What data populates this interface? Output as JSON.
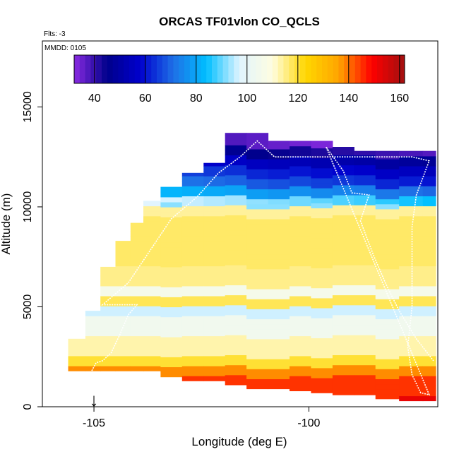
{
  "chart_data": {
    "type": "heatmap",
    "title": "ORCAS TF01vlon CO_QCLS",
    "flights_note": "Flts: -3",
    "date_note": "MMDD: 0105",
    "xlabel": "Longitude (deg E)",
    "ylabel": "Altitude (m)",
    "xlim": [
      -106.2,
      -97.0
    ],
    "ylim": [
      0,
      18300
    ],
    "x_ticks": [
      -105,
      -100
    ],
    "x_tick_labels": [
      "-105",
      "-100"
    ],
    "y_ticks": [
      0,
      5000,
      10000,
      15000
    ],
    "y_tick_labels": [
      "0",
      "5000",
      "10000",
      "15000"
    ],
    "colorbar": {
      "range": [
        32,
        162
      ],
      "ticks": [
        40,
        60,
        80,
        100,
        120,
        140,
        160
      ],
      "tick_labels": [
        "40",
        "60",
        "80",
        "100",
        "120",
        "140",
        "160"
      ],
      "colors": [
        "#8a2be2",
        "#00008b",
        "#0000cd",
        "#1e6fe6",
        "#00bfff",
        "#e0f4ff",
        "#fffde0",
        "#ffd700",
        "#ffa500",
        "#ff0000",
        "#a01010"
      ]
    },
    "marker": {
      "longitude": -105.0,
      "symbol": "↓"
    },
    "altitude_profile": [
      {
        "alt_min": 14000,
        "alt_max": 18300,
        "co": null
      },
      {
        "alt_min": 13000,
        "alt_max": 14000,
        "co": 36
      },
      {
        "alt_min": 12500,
        "alt_max": 13000,
        "co": 45
      },
      {
        "alt_min": 12000,
        "alt_max": 12500,
        "co": 55
      },
      {
        "alt_min": 11500,
        "alt_max": 12000,
        "co": 62
      },
      {
        "alt_min": 11000,
        "alt_max": 11500,
        "co": 68
      },
      {
        "alt_min": 10500,
        "alt_max": 11000,
        "co": 78
      },
      {
        "alt_min": 10000,
        "alt_max": 10500,
        "co": 92
      },
      {
        "alt_min": 9500,
        "alt_max": 10000,
        "co": 114
      },
      {
        "alt_min": 7000,
        "alt_max": 9500,
        "co": 117
      },
      {
        "alt_min": 6000,
        "alt_max": 7000,
        "co": 115
      },
      {
        "alt_min": 5500,
        "alt_max": 6000,
        "co": 106
      },
      {
        "alt_min": 5000,
        "alt_max": 5500,
        "co": 118
      },
      {
        "alt_min": 4500,
        "alt_max": 5000,
        "co": 96
      },
      {
        "alt_min": 3500,
        "alt_max": 4500,
        "co": 104
      },
      {
        "alt_min": 2500,
        "alt_max": 3500,
        "co": 113
      },
      {
        "alt_min": 2000,
        "alt_max": 2500,
        "co": 120
      },
      {
        "alt_min": 1500,
        "alt_max": 2000,
        "co": 138
      },
      {
        "alt_min": 500,
        "alt_max": 1500,
        "co": 145
      },
      {
        "alt_min": 0,
        "alt_max": 500,
        "co": 152
      }
    ],
    "coverage": [
      {
        "lon": -105.4,
        "alt_top": 3400,
        "alt_bottom": 1800
      },
      {
        "lon": -105.0,
        "alt_top": 4800,
        "alt_bottom": 1800
      },
      {
        "lon": -104.7,
        "alt_top": 7000,
        "alt_bottom": 1800
      },
      {
        "lon": -104.3,
        "alt_top": 8300,
        "alt_bottom": 1800
      },
      {
        "lon": -104.0,
        "alt_top": 9200,
        "alt_bottom": 1800
      },
      {
        "lon": -103.7,
        "alt_top": 10300,
        "alt_bottom": 1800
      },
      {
        "lon": -103.2,
        "alt_top": 11000,
        "alt_bottom": 1500
      },
      {
        "lon": -102.7,
        "alt_top": 11700,
        "alt_bottom": 1300
      },
      {
        "lon": -102.2,
        "alt_top": 12200,
        "alt_bottom": 1300
      },
      {
        "lon": -101.7,
        "alt_top": 13700,
        "alt_bottom": 1100
      },
      {
        "lon": -101.2,
        "alt_top": 13700,
        "alt_bottom": 900
      },
      {
        "lon": -100.7,
        "alt_top": 13300,
        "alt_bottom": 900
      },
      {
        "lon": -100.2,
        "alt_top": 13300,
        "alt_bottom": 800
      },
      {
        "lon": -99.7,
        "alt_top": 13300,
        "alt_bottom": 700
      },
      {
        "lon": -99.2,
        "alt_top": 13000,
        "alt_bottom": 600
      },
      {
        "lon": -98.7,
        "alt_top": 12800,
        "alt_bottom": 600
      },
      {
        "lon": -98.2,
        "alt_top": 12800,
        "alt_bottom": 400
      },
      {
        "lon": -97.6,
        "alt_top": 12800,
        "alt_bottom": 300
      },
      {
        "lon": -97.1,
        "alt_top": 12800,
        "alt_bottom": 300
      }
    ],
    "flight_track": [
      [
        -105.05,
        1800
      ],
      [
        -104.95,
        2200
      ],
      [
        -104.8,
        2300
      ],
      [
        -104.6,
        2700
      ],
      [
        -104.4,
        3600
      ],
      [
        -104.2,
        4600
      ],
      [
        -104.0,
        5100
      ],
      [
        -104.5,
        5100
      ],
      [
        -104.8,
        5100
      ],
      [
        -104.2,
        6200
      ],
      [
        -103.7,
        7800
      ],
      [
        -103.2,
        9400
      ],
      [
        -102.6,
        10500
      ],
      [
        -102.1,
        11700
      ],
      [
        -101.6,
        12500
      ],
      [
        -101.2,
        13300
      ],
      [
        -100.8,
        12500
      ],
      [
        -100.3,
        12500
      ],
      [
        -99.8,
        12500
      ],
      [
        -99.3,
        12500
      ],
      [
        -98.8,
        12500
      ],
      [
        -98.3,
        12500
      ],
      [
        -97.6,
        12500
      ],
      [
        -97.2,
        12300
      ],
      [
        -97.5,
        10600
      ],
      [
        -97.6,
        9000
      ],
      [
        -97.6,
        7000
      ],
      [
        -97.6,
        5000
      ],
      [
        -97.7,
        3000
      ],
      [
        -97.6,
        1600
      ],
      [
        -97.4,
        700
      ],
      [
        -97.2,
        600
      ],
      [
        -99.6,
        13000
      ],
      [
        -99.2,
        11800
      ],
      [
        -99.0,
        10700
      ],
      [
        -98.6,
        10600
      ],
      [
        -98.8,
        9300
      ],
      [
        -98.5,
        7600
      ],
      [
        -98.2,
        6100
      ],
      [
        -97.9,
        4800
      ],
      [
        -97.5,
        3400
      ],
      [
        -97.1,
        2300
      ]
    ]
  }
}
